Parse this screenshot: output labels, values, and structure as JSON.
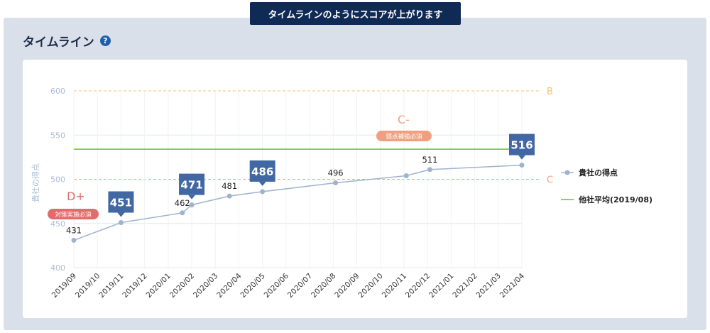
{
  "banner": "タイムラインのようにスコアが上がります",
  "section_title": "タイムライン",
  "help_icon": "?",
  "chart_data": {
    "type": "line",
    "ylabel": "貴社の得点",
    "ylim": [
      400,
      600
    ],
    "yticks": [
      400,
      450,
      500,
      550,
      600
    ],
    "categories": [
      "2019/09",
      "2019/10",
      "2019/11",
      "2019/12",
      "2020/01",
      "2020/02",
      "2020/03",
      "2020/04",
      "2020/05",
      "2020/06",
      "2020/07",
      "2020/08",
      "2020/09",
      "2020/10",
      "2020/11",
      "2020/12",
      "2021/01",
      "2021/02",
      "2021/03",
      "2021/04"
    ],
    "series": [
      {
        "name": "貴社の得点",
        "color": "#9fb3cd",
        "points": [
          {
            "x": 0,
            "y": 431,
            "label": "431",
            "style": "text"
          },
          {
            "x": 2,
            "y": 451,
            "label": "451",
            "style": "box"
          },
          {
            "x": 4.6,
            "y": 462,
            "label": "462",
            "style": "text"
          },
          {
            "x": 5,
            "y": 471,
            "label": "471",
            "style": "box"
          },
          {
            "x": 6.6,
            "y": 481,
            "label": "481",
            "style": "text"
          },
          {
            "x": 8,
            "y": 486,
            "label": "486",
            "style": "box"
          },
          {
            "x": 11.1,
            "y": 496,
            "label": "496",
            "style": "text"
          },
          {
            "x": 14.1,
            "y": 504,
            "label": "",
            "style": "none"
          },
          {
            "x": 15.1,
            "y": 511,
            "label": "511",
            "style": "text"
          },
          {
            "x": 19,
            "y": 516,
            "label": "516",
            "style": "box"
          }
        ]
      },
      {
        "name": "他社平均(2019/08)",
        "color": "#6cc024",
        "type": "hline",
        "y": 534
      }
    ],
    "reference_lines": [
      {
        "y": 600,
        "label": "B",
        "color": "#f2c46a"
      },
      {
        "y": 500,
        "label": "C",
        "color": "#f0a090"
      }
    ],
    "annotations": [
      {
        "grade": "D+",
        "badge": "対策実施必須",
        "color": "#e46b6b"
      },
      {
        "grade": "C-",
        "badge": "弱点補強必須",
        "color": "#f0a080"
      }
    ],
    "grid": true,
    "legend_position": "right"
  }
}
